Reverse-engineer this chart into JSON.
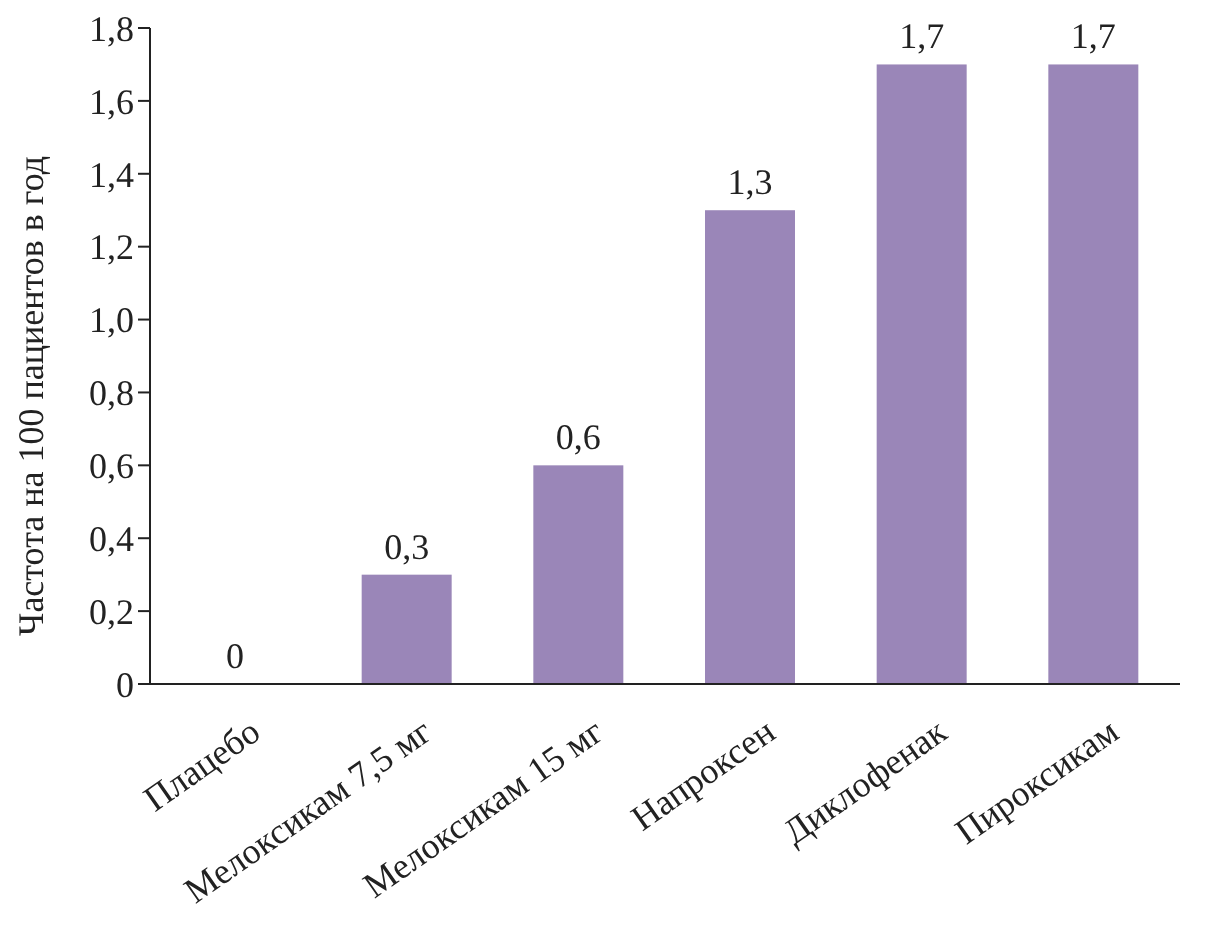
{
  "chart_data": {
    "type": "bar",
    "ylabel": "Частота на 100 пациентов в год",
    "categories": [
      "Плацебо",
      "Мелоксикам 7,5 мг",
      "Мелоксикам 15 мг",
      "Напроксен",
      "Диклофенак",
      "Пироксикам"
    ],
    "values": [
      0,
      0.3,
      0.6,
      1.3,
      1.7,
      1.7
    ],
    "value_labels": [
      "0",
      "0,3",
      "0,6",
      "1,3",
      "1,7",
      "1,7"
    ],
    "color": "#9a86b8",
    "ylim": [
      0,
      1.8
    ],
    "yticks": [
      0,
      {
        "value": 0.2,
        "label": "0,2"
      },
      {
        "value": 0.4,
        "label": "0,4"
      },
      {
        "value": 0.6,
        "label": "0,6"
      },
      {
        "value": 0.8,
        "label": "0,8"
      },
      {
        "value": 1.0,
        "label": "1,0"
      },
      {
        "value": 1.2,
        "label": "1,2"
      },
      {
        "value": 1.4,
        "label": "1,4"
      },
      {
        "value": 1.6,
        "label": "1,6"
      },
      {
        "value": 1.8,
        "label": "1,8"
      }
    ]
  }
}
